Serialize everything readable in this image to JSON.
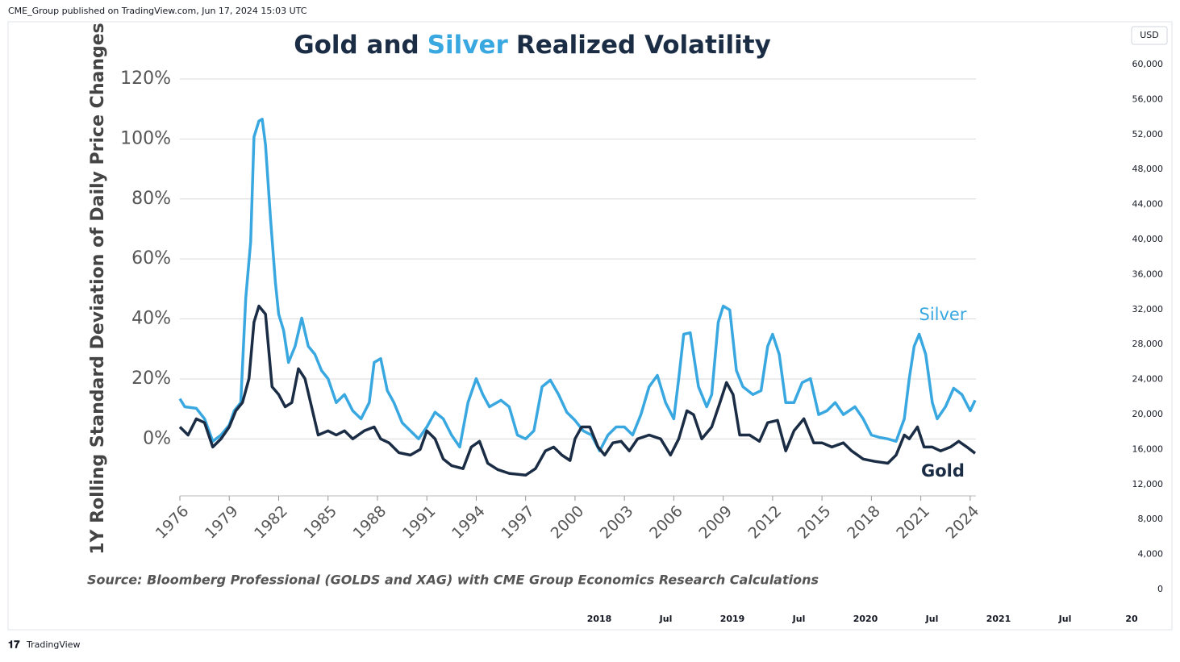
{
  "page": {
    "header": "CME_Group published on TradingView.com, Jun 17, 2024 15:03 UTC",
    "currency": "USD",
    "price_labels": [
      "60,000",
      "56,000",
      "52,000",
      "48,000",
      "44,000",
      "40,000",
      "36,000",
      "32,000",
      "28,000",
      "24,000",
      "20,000",
      "16,000",
      "12,000",
      "8,000",
      "4,000",
      "0"
    ],
    "time_labels": [
      "2018",
      "Jul",
      "2019",
      "Jul",
      "2020",
      "Jul",
      "2021",
      "Jul",
      "20"
    ],
    "brand": "TradingView"
  },
  "chart_data": {
    "type": "line",
    "title_parts": [
      {
        "text": "Gold and",
        "color": "#1b2c45"
      },
      {
        "text": "Silver",
        "color": "#3aa8e0"
      },
      {
        "text": "Realized Volatility",
        "color": "#1b2c45"
      }
    ],
    "y_label": "1Y Rolling Standard Deviation of Daily Price Changes",
    "source": "Source: Bloomberg Professional (GOLDS and XAG) with CME Group Economics Research Calculations",
    "xlim": [
      1976,
      2024.35
    ],
    "xticks": [
      1976,
      1979,
      1982,
      1985,
      1988,
      1991,
      1994,
      1997,
      2000,
      2003,
      2006,
      2009,
      2012,
      2015,
      2018,
      2021,
      2024
    ],
    "ylim": [
      -19,
      120
    ],
    "yticks": [
      {
        "value": 0,
        "label": "0%"
      },
      {
        "value": 20,
        "label": "20%"
      },
      {
        "value": 40,
        "label": "40%"
      },
      {
        "value": 60,
        "label": "60%"
      },
      {
        "value": 80,
        "label": "80%"
      },
      {
        "value": 100,
        "label": "100%"
      },
      {
        "value": 120,
        "label": "120%"
      }
    ],
    "grid": true,
    "series": [
      {
        "name": "Silver",
        "color": "#3aa8e0",
        "x": [
          1976.0,
          1976.3,
          1977.0,
          1977.5,
          1978.0,
          1978.5,
          1979.0,
          1979.3,
          1979.7,
          1980.0,
          1980.3,
          1980.5,
          1980.8,
          1981.0,
          1981.2,
          1981.5,
          1981.8,
          1982.0,
          1982.3,
          1982.6,
          1983.0,
          1983.4,
          1983.8,
          1984.2,
          1984.6,
          1985.0,
          1985.5,
          1986.0,
          1986.5,
          1987.0,
          1987.5,
          1987.8,
          1988.2,
          1988.6,
          1989.0,
          1989.5,
          1990.0,
          1990.5,
          1991.0,
          1991.5,
          1992.0,
          1992.5,
          1993.0,
          1993.5,
          1994.0,
          1994.4,
          1994.8,
          1995.5,
          1996.0,
          1996.5,
          1997.0,
          1997.5,
          1998.0,
          1998.5,
          1999.0,
          1999.5,
          2000.0,
          2000.5,
          2001.0,
          2001.5,
          2002.0,
          2002.5,
          2003.0,
          2003.5,
          2004.0,
          2004.5,
          2005.0,
          2005.5,
          2006.0,
          2006.3,
          2006.6,
          2007.0,
          2007.5,
          2008.0,
          2008.3,
          2008.7,
          2009.0,
          2009.4,
          2009.8,
          2010.2,
          2010.8,
          2011.3,
          2011.7,
          2012.0,
          2012.4,
          2012.8,
          2013.3,
          2013.8,
          2014.3,
          2014.8,
          2015.3,
          2015.8,
          2016.3,
          2017.0,
          2017.5,
          2018.0,
          2018.5,
          2019.0,
          2019.5,
          2020.0,
          2020.3,
          2020.6,
          2020.9,
          2021.3,
          2021.7,
          2022.0,
          2022.5,
          2023.0,
          2023.5,
          2024.0,
          2024.3
        ],
        "values": [
          13.4,
          10.7,
          10.2,
          6.7,
          -0.8,
          1.3,
          4.6,
          9.4,
          12.1,
          47,
          65.8,
          100.7,
          106,
          106.6,
          98,
          73.8,
          52.3,
          41.6,
          36.2,
          25.5,
          30.9,
          40.3,
          30.9,
          28.2,
          22.8,
          20.1,
          12.1,
          14.8,
          9.4,
          6.7,
          12.1,
          25.5,
          26.8,
          16.1,
          12.1,
          5.4,
          2.7,
          0,
          4,
          8.9,
          6.7,
          1.3,
          -2.7,
          12.1,
          20.1,
          14.8,
          10.7,
          12.9,
          10.7,
          1.3,
          0,
          2.7,
          17.4,
          19.6,
          14.8,
          8.9,
          6.2,
          2.7,
          1.3,
          -4,
          1.3,
          4,
          4,
          1.3,
          8.1,
          17.4,
          21.2,
          12.1,
          6.7,
          20.1,
          34.9,
          35.4,
          17.4,
          10.7,
          14.8,
          38.9,
          44.3,
          43,
          22.8,
          17.4,
          14.8,
          16.1,
          30.9,
          34.9,
          28.2,
          12.1,
          12.1,
          18.8,
          20.1,
          8.1,
          9.4,
          12.1,
          8.1,
          10.7,
          6.7,
          1.3,
          0.5,
          0,
          -0.8,
          6.7,
          20.1,
          30.9,
          34.9,
          28.2,
          12.1,
          6.7,
          10.7,
          16.9,
          14.8,
          9.4,
          12.9
        ]
      },
      {
        "name": "Gold",
        "color": "#1b2c45",
        "x": [
          1976.0,
          1976.5,
          1977.0,
          1977.5,
          1978.0,
          1978.5,
          1979.0,
          1979.4,
          1979.8,
          1980.2,
          1980.5,
          1980.8,
          1981.2,
          1981.6,
          1982.0,
          1982.4,
          1982.8,
          1983.2,
          1983.6,
          1984.0,
          1984.4,
          1985.0,
          1985.5,
          1986.0,
          1986.5,
          1987.2,
          1987.8,
          1988.2,
          1988.7,
          1989.3,
          1990.0,
          1990.6,
          1991.0,
          1991.5,
          1992.0,
          1992.5,
          1993.2,
          1993.7,
          1994.2,
          1994.7,
          1995.3,
          1996.0,
          1997.0,
          1997.6,
          1998.2,
          1998.7,
          1999.2,
          1999.7,
          2000.0,
          2000.4,
          2000.9,
          2001.4,
          2001.8,
          2002.3,
          2002.8,
          2003.3,
          2003.8,
          2004.5,
          2005.2,
          2005.8,
          2006.3,
          2006.8,
          2007.2,
          2007.7,
          2008.3,
          2008.8,
          2009.2,
          2009.6,
          2010.0,
          2010.6,
          2011.2,
          2011.7,
          2012.3,
          2012.8,
          2013.3,
          2013.9,
          2014.5,
          2015.0,
          2015.6,
          2016.3,
          2016.8,
          2017.5,
          2018.2,
          2019.0,
          2019.5,
          2020.0,
          2020.3,
          2020.8,
          2021.2,
          2021.7,
          2022.2,
          2022.8,
          2023.3,
          2023.8,
          2024.3
        ],
        "values": [
          4,
          1.3,
          6.7,
          5.4,
          -2.7,
          0,
          4,
          9.4,
          12.1,
          20.1,
          38.9,
          44.3,
          41.6,
          17.4,
          14.8,
          10.7,
          12.1,
          23.4,
          20.1,
          10.7,
          1.3,
          2.7,
          1.3,
          2.7,
          0,
          2.7,
          4,
          0,
          -1.3,
          -4.6,
          -5.4,
          -3.5,
          2.7,
          0,
          -6.7,
          -8.9,
          -9.9,
          -2.7,
          -0.8,
          -8.1,
          -10.2,
          -11.5,
          -12.1,
          -9.9,
          -4,
          -2.7,
          -5.4,
          -7.2,
          0,
          4,
          4,
          -2.7,
          -5.4,
          -1.3,
          -0.8,
          -4,
          0,
          1.3,
          0,
          -5.4,
          0,
          9.4,
          8.1,
          0,
          4,
          12.1,
          18.8,
          14.8,
          1.3,
          1.3,
          -0.8,
          5.4,
          6.2,
          -4,
          2.7,
          6.7,
          -1.3,
          -1.3,
          -2.7,
          -1.3,
          -4,
          -6.7,
          -7.5,
          -8.1,
          -5.4,
          1.3,
          0,
          4,
          -2.7,
          -2.7,
          -4,
          -2.7,
          -0.8,
          -2.7,
          -4.8
        ]
      }
    ]
  }
}
